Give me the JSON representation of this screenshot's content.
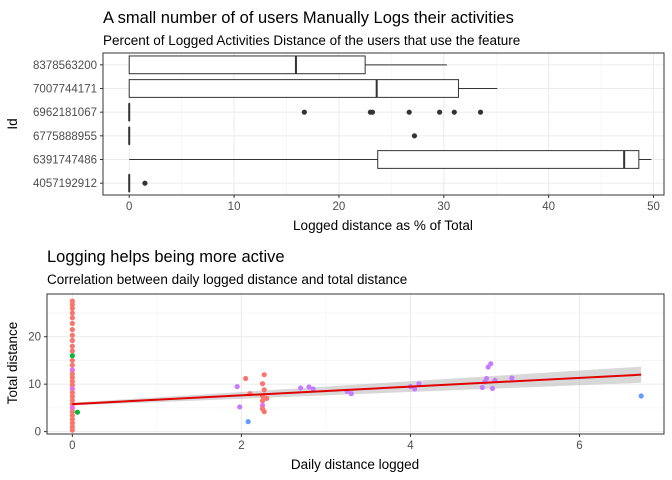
{
  "chart_data": [
    {
      "type": "boxplot",
      "orientation": "horizontal",
      "title": "A small number of of users Manually Logs their activities",
      "subtitle": "Percent of Logged Activities Distance of the users that use the feature",
      "xlabel": "Logged distance as % of Total",
      "ylabel": "Id",
      "xlim": [
        -2.5,
        51
      ],
      "xticks": [
        0,
        10,
        20,
        30,
        40,
        50
      ],
      "grid": true,
      "categories": [
        "8378563200",
        "7007744171",
        "6962181067",
        "6775888955",
        "6391747486",
        "4057192912"
      ],
      "boxes": [
        {
          "id": "8378563200",
          "min": 0,
          "q1": 0,
          "median": 15.9,
          "q3": 22.5,
          "max": 30.3,
          "outliers": []
        },
        {
          "id": "7007744171",
          "min": 0,
          "q1": 0,
          "median": 23.6,
          "q3": 31.4,
          "max": 35.1,
          "outliers": []
        },
        {
          "id": "6962181067",
          "min": 0,
          "q1": 0,
          "median": 0,
          "q3": 0,
          "max": 0,
          "outliers": [
            16.7,
            23.0,
            23.2,
            26.7,
            29.6,
            31.0,
            33.5
          ]
        },
        {
          "id": "6775888955",
          "min": 0,
          "q1": 0,
          "median": 0,
          "q3": 0,
          "max": 0,
          "outliers": [
            27.2
          ]
        },
        {
          "id": "6391747486",
          "min": 0,
          "q1": 23.7,
          "median": 47.2,
          "q3": 48.6,
          "max": 49.8,
          "outliers": []
        },
        {
          "id": "4057192912",
          "min": 0,
          "q1": 0,
          "median": 0,
          "q3": 0,
          "max": 0,
          "outliers": [
            1.5
          ]
        }
      ]
    },
    {
      "type": "scatter",
      "title": "Logging helps being more active",
      "subtitle": "Correlation between daily logged distance and total distance",
      "xlabel": "Daily distance logged",
      "ylabel": "Total distance",
      "xlim": [
        -0.3,
        7.0
      ],
      "ylim": [
        -0.5,
        29.0
      ],
      "xticks": [
        0,
        2,
        4,
        6
      ],
      "yticks": [
        0,
        10,
        20
      ],
      "grid": true,
      "smooth_line": {
        "color": "#e00000",
        "x": [
          0,
          6.73
        ],
        "y": [
          5.8,
          12.0
        ],
        "band_low": [
          5.5,
          10.3
        ],
        "band_high": [
          6.1,
          13.7
        ]
      },
      "points": [
        {
          "x": 0,
          "y": 27.5,
          "color": "#f8766d"
        },
        {
          "x": 0,
          "y": 26.8,
          "color": "#f8766d"
        },
        {
          "x": 0,
          "y": 26.0,
          "color": "#f8766d"
        },
        {
          "x": 0,
          "y": 25.0,
          "color": "#f8766d"
        },
        {
          "x": 0,
          "y": 24.0,
          "color": "#f8766d"
        },
        {
          "x": 0,
          "y": 22.8,
          "color": "#f8766d"
        },
        {
          "x": 0,
          "y": 21.5,
          "color": "#f8766d"
        },
        {
          "x": 0,
          "y": 20.3,
          "color": "#f8766d"
        },
        {
          "x": 0,
          "y": 19.2,
          "color": "#f8766d"
        },
        {
          "x": 0,
          "y": 18.0,
          "color": "#f8766d"
        },
        {
          "x": 0,
          "y": 17.0,
          "color": "#f8766d"
        },
        {
          "x": 0,
          "y": 16.0,
          "color": "#00ba38"
        },
        {
          "x": 0,
          "y": 15.0,
          "color": "#f8766d"
        },
        {
          "x": 0,
          "y": 14.0,
          "color": "#f8766d"
        },
        {
          "x": 0,
          "y": 13.0,
          "color": "#e76bf3"
        },
        {
          "x": 0,
          "y": 12.2,
          "color": "#f8766d"
        },
        {
          "x": 0,
          "y": 11.4,
          "color": "#f8766d"
        },
        {
          "x": 0,
          "y": 10.6,
          "color": "#f8766d"
        },
        {
          "x": 0,
          "y": 9.8,
          "color": "#f8766d"
        },
        {
          "x": 0,
          "y": 9.0,
          "color": "#e76bf3"
        },
        {
          "x": 0,
          "y": 8.2,
          "color": "#f8766d"
        },
        {
          "x": 0,
          "y": 7.4,
          "color": "#f8766d"
        },
        {
          "x": 0,
          "y": 6.6,
          "color": "#f8766d"
        },
        {
          "x": 0,
          "y": 5.8,
          "color": "#f8766d"
        },
        {
          "x": 0,
          "y": 5.0,
          "color": "#e76bf3"
        },
        {
          "x": 0,
          "y": 4.2,
          "color": "#f8766d"
        },
        {
          "x": 0,
          "y": 3.4,
          "color": "#f8766d"
        },
        {
          "x": 0,
          "y": 2.6,
          "color": "#f8766d"
        },
        {
          "x": 0,
          "y": 1.8,
          "color": "#f8766d"
        },
        {
          "x": 0,
          "y": 1.0,
          "color": "#f8766d"
        },
        {
          "x": 0,
          "y": 0.3,
          "color": "#f8766d"
        },
        {
          "x": 0.06,
          "y": 4.1,
          "color": "#00ba38"
        },
        {
          "x": 1.95,
          "y": 9.5,
          "color": "#c77cff"
        },
        {
          "x": 1.98,
          "y": 5.2,
          "color": "#c77cff"
        },
        {
          "x": 2.05,
          "y": 11.2,
          "color": "#f8766d"
        },
        {
          "x": 2.08,
          "y": 2.1,
          "color": "#619cff"
        },
        {
          "x": 2.1,
          "y": 8.0,
          "color": "#f8766d"
        },
        {
          "x": 2.25,
          "y": 10.1,
          "color": "#f8766d"
        },
        {
          "x": 2.25,
          "y": 7.5,
          "color": "#f8766d"
        },
        {
          "x": 2.25,
          "y": 6.5,
          "color": "#f8766d"
        },
        {
          "x": 2.25,
          "y": 5.5,
          "color": "#e76bf3"
        },
        {
          "x": 2.25,
          "y": 4.8,
          "color": "#f8766d"
        },
        {
          "x": 2.27,
          "y": 12.0,
          "color": "#f8766d"
        },
        {
          "x": 2.27,
          "y": 8.8,
          "color": "#f8766d"
        },
        {
          "x": 2.27,
          "y": 4.2,
          "color": "#f8766d"
        },
        {
          "x": 2.3,
          "y": 7.0,
          "color": "#f8766d"
        },
        {
          "x": 2.7,
          "y": 9.2,
          "color": "#c77cff"
        },
        {
          "x": 2.8,
          "y": 9.4,
          "color": "#c77cff"
        },
        {
          "x": 2.85,
          "y": 9.0,
          "color": "#c77cff"
        },
        {
          "x": 3.25,
          "y": 8.5,
          "color": "#c77cff"
        },
        {
          "x": 3.3,
          "y": 8.0,
          "color": "#c77cff"
        },
        {
          "x": 4.0,
          "y": 9.5,
          "color": "#c77cff"
        },
        {
          "x": 4.05,
          "y": 9.0,
          "color": "#c77cff"
        },
        {
          "x": 4.1,
          "y": 10.1,
          "color": "#c77cff"
        },
        {
          "x": 4.85,
          "y": 9.3,
          "color": "#c77cff"
        },
        {
          "x": 4.88,
          "y": 10.5,
          "color": "#c77cff"
        },
        {
          "x": 4.9,
          "y": 11.2,
          "color": "#c77cff"
        },
        {
          "x": 4.92,
          "y": 13.6,
          "color": "#c77cff"
        },
        {
          "x": 4.95,
          "y": 14.3,
          "color": "#c77cff"
        },
        {
          "x": 4.97,
          "y": 9.1,
          "color": "#c77cff"
        },
        {
          "x": 5.0,
          "y": 10.8,
          "color": "#c77cff"
        },
        {
          "x": 5.2,
          "y": 11.3,
          "color": "#c77cff"
        },
        {
          "x": 6.73,
          "y": 7.5,
          "color": "#619cff"
        }
      ]
    }
  ]
}
